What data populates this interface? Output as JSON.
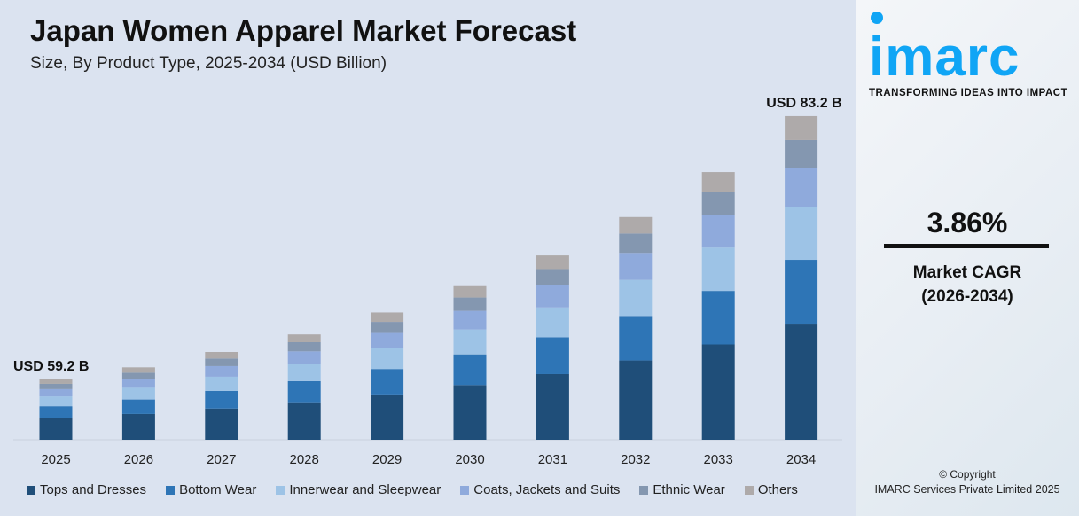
{
  "title": "Japan Women Apparel Market Forecast",
  "subtitle": "Size, By Product Type, 2025-2034 (USD Billion)",
  "brand": {
    "logo_text": "imarc",
    "tagline": "TRANSFORMING IDEAS INTO IMPACT",
    "color": "#10a5f5"
  },
  "cagr": {
    "value": "3.86%",
    "label_line1": "Market CAGR",
    "label_line2": "(2026-2034)"
  },
  "footer": {
    "copyright": "© Copyright",
    "company": "IMARC Services Private Limited 2025"
  },
  "chart_data": {
    "type": "bar",
    "stacked": true,
    "categories": [
      "2025",
      "2026",
      "2027",
      "2028",
      "2029",
      "2030",
      "2031",
      "2032",
      "2033",
      "2034"
    ],
    "totals": [
      59.2,
      60.3,
      61.7,
      63.3,
      65.3,
      67.7,
      70.5,
      74.0,
      78.1,
      83.2
    ],
    "annotations": [
      {
        "category": "2025",
        "text": "USD 59.2 B"
      },
      {
        "category": "2034",
        "text": "USD 83.2 B"
      }
    ],
    "series": [
      {
        "name": "Tops and Dresses",
        "color": "#1f4e79",
        "share_pct": 35.6
      },
      {
        "name": "Bottom Wear",
        "color": "#2e75b6",
        "share_pct": 20.0
      },
      {
        "name": "Innerwear and Sleepwear",
        "color": "#9dc3e6",
        "share_pct": 16.2
      },
      {
        "name": "Coats, Jackets and Suits",
        "color": "#8faadc",
        "share_pct": 12.1
      },
      {
        "name": "Ethnic Wear",
        "color": "#8497b0",
        "share_pct": 8.7
      },
      {
        "name": "Others",
        "color": "#aeaaaa",
        "share_pct": 7.4
      }
    ],
    "ylim": [
      53.7,
      85
    ],
    "grid": false,
    "legend": "bottom"
  }
}
